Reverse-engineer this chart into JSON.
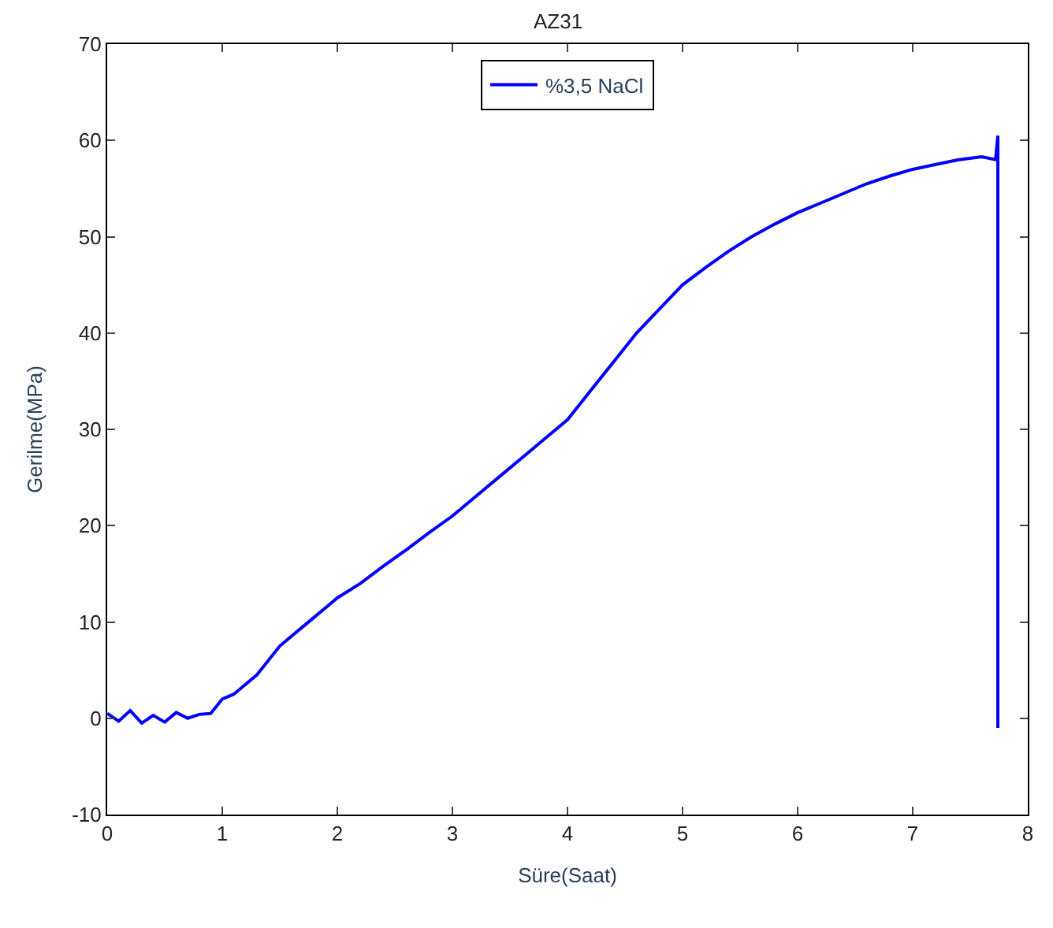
{
  "chart_data": {
    "type": "line",
    "title": "AZ31",
    "xlabel": "Süre(Saat)",
    "ylabel": "Gerilme(MPa)",
    "xlim": [
      0,
      8
    ],
    "xticks": [
      0,
      1,
      2,
      3,
      4,
      5,
      6,
      7,
      8
    ],
    "ylim": [
      -10,
      70
    ],
    "yticks": [
      -10,
      0,
      10,
      20,
      30,
      40,
      50,
      60,
      70
    ],
    "legend": "top",
    "marker": "none",
    "line_style": "solid",
    "series": [
      {
        "name": "%3,5 NaCl",
        "color": "#0000ff",
        "x": [
          0,
          0.1,
          0.2,
          0.3,
          0.4,
          0.5,
          0.6,
          0.7,
          0.8,
          0.9,
          1.0,
          1.1,
          1.2,
          1.3,
          1.4,
          1.5,
          1.6,
          1.7,
          1.8,
          1.9,
          2.0,
          2.2,
          2.4,
          2.6,
          2.8,
          3.0,
          3.2,
          3.4,
          3.6,
          3.8,
          4.0,
          4.2,
          4.4,
          4.6,
          4.8,
          5.0,
          5.2,
          5.4,
          5.6,
          5.8,
          6.0,
          6.2,
          6.4,
          6.6,
          6.8,
          7.0,
          7.2,
          7.4,
          7.6,
          7.72,
          7.74,
          7.74
        ],
        "values": [
          0.5,
          -0.3,
          0.8,
          -0.5,
          0.3,
          -0.4,
          0.6,
          0,
          0.4,
          0.5,
          2,
          2.5,
          3.5,
          4.5,
          6,
          7.5,
          8.5,
          9.5,
          10.5,
          11.5,
          12.5,
          14,
          15.8,
          17.5,
          19.3,
          21,
          23,
          25,
          27,
          29,
          31,
          34,
          37,
          40,
          42.5,
          45,
          46.8,
          48.5,
          50,
          51.3,
          52.5,
          53.5,
          54.5,
          55.5,
          56.3,
          57,
          57.5,
          58,
          58.3,
          58,
          60.5,
          -1
        ]
      }
    ]
  }
}
